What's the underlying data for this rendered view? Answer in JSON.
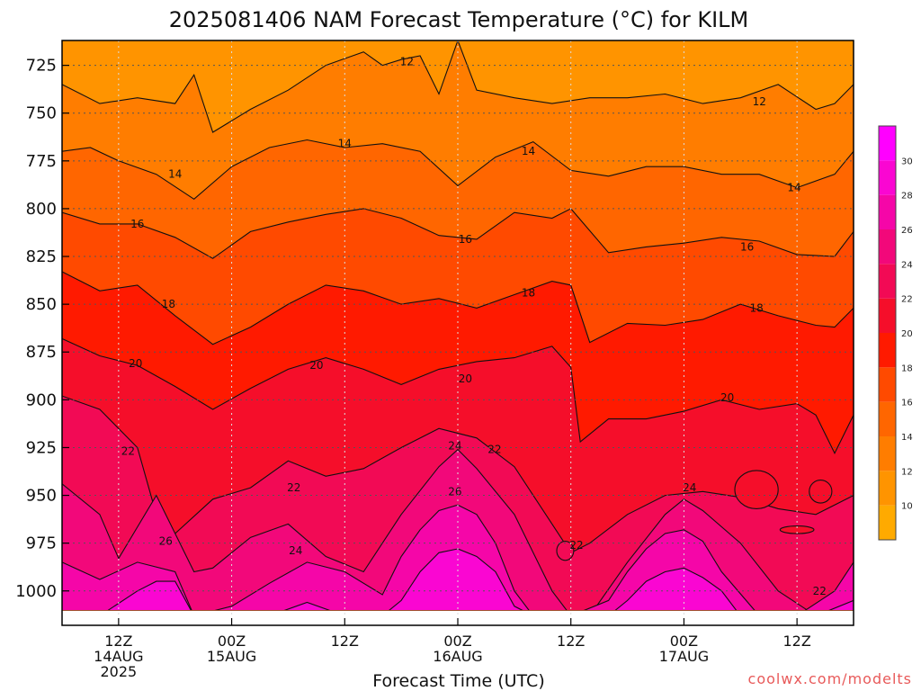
{
  "chart_data": {
    "type": "heatmap",
    "title": "2025081406 NAM Forecast Temperature (°C) for KILM",
    "xlabel": "Forecast Time (UTC)",
    "ylabel": "",
    "credit": "coolwx.com/modelts",
    "y_axis": {
      "ticks": [
        725,
        750,
        775,
        800,
        825,
        850,
        875,
        900,
        925,
        950,
        975,
        1000
      ],
      "range": [
        712,
        1018
      ],
      "inverted": true
    },
    "x_axis": {
      "range_hours": [
        6,
        90
      ],
      "ticks": [
        {
          "hour": 12,
          "lines": [
            "12Z",
            "14AUG",
            "2025"
          ]
        },
        {
          "hour": 24,
          "lines": [
            "00Z",
            "15AUG"
          ]
        },
        {
          "hour": 36,
          "lines": [
            "12Z"
          ]
        },
        {
          "hour": 48,
          "lines": [
            "00Z",
            "16AUG"
          ]
        },
        {
          "hour": 60,
          "lines": [
            "12Z"
          ]
        },
        {
          "hour": 72,
          "lines": [
            "00Z",
            "17AUG"
          ]
        },
        {
          "hour": 84,
          "lines": [
            "12Z"
          ]
        }
      ]
    },
    "grid": true,
    "colorbar": {
      "position": "right",
      "levels": [
        8,
        10,
        12,
        14,
        16,
        18,
        20,
        22,
        24,
        26,
        28,
        30,
        32
      ],
      "tick_labels": [
        "10",
        "12",
        "14",
        "16",
        "18",
        "20",
        "22",
        "24",
        "26",
        "28",
        "30"
      ],
      "colors": [
        "#ffaa00",
        "#ff9400",
        "#ff7d00",
        "#ff6600",
        "#ff4a00",
        "#ff1a00",
        "#f50e2a",
        "#f20a55",
        "#f2087a",
        "#f506a8",
        "#fa06d2",
        "#ff00ff"
      ]
    },
    "contour_levels": [
      12,
      14,
      16,
      18,
      20,
      22,
      24,
      26,
      28,
      30
    ],
    "isotherms": [
      {
        "level": 12,
        "hours": [
          6,
          10,
          14,
          18,
          20,
          22,
          26,
          30,
          34,
          38,
          40,
          42,
          44,
          46,
          48,
          50,
          54,
          58,
          62,
          66,
          70,
          74,
          78,
          82,
          86,
          88,
          90
        ],
        "pressure": [
          735,
          745,
          742,
          745,
          730,
          760,
          748,
          738,
          725,
          718,
          725,
          722,
          720,
          740,
          712,
          738,
          742,
          745,
          742,
          742,
          740,
          745,
          742,
          735,
          748,
          745,
          735
        ]
      },
      {
        "level": 14,
        "hours": [
          6,
          9,
          12,
          16,
          20,
          24,
          28,
          32,
          36,
          40,
          44,
          48,
          52,
          56,
          60,
          64,
          68,
          72,
          76,
          80,
          84,
          88,
          90
        ],
        "pressure": [
          770,
          768,
          775,
          782,
          795,
          778,
          768,
          764,
          768,
          766,
          770,
          788,
          773,
          765,
          780,
          783,
          778,
          778,
          782,
          782,
          789,
          782,
          770
        ]
      },
      {
        "level": 16,
        "hours": [
          6,
          10,
          14,
          18,
          22,
          26,
          30,
          34,
          38,
          42,
          46,
          50,
          54,
          58,
          60,
          64,
          68,
          72,
          76,
          80,
          84,
          88,
          90
        ],
        "pressure": [
          802,
          808,
          808,
          815,
          826,
          812,
          807,
          803,
          800,
          805,
          814,
          816,
          802,
          805,
          800,
          823,
          820,
          818,
          815,
          817,
          824,
          825,
          812
        ]
      },
      {
        "level": 18,
        "hours": [
          6,
          10,
          14,
          18,
          22,
          26,
          30,
          34,
          38,
          42,
          46,
          50,
          54,
          58,
          60,
          62,
          66,
          70,
          74,
          78,
          82,
          86,
          88,
          90
        ],
        "pressure": [
          833,
          843,
          840,
          856,
          871,
          862,
          850,
          840,
          843,
          850,
          847,
          852,
          845,
          838,
          840,
          870,
          860,
          861,
          858,
          850,
          856,
          861,
          862,
          852
        ]
      },
      {
        "level": 20,
        "hours": [
          6,
          10,
          14,
          18,
          22,
          26,
          30,
          34,
          38,
          42,
          46,
          50,
          54,
          58,
          60,
          61,
          64,
          68,
          72,
          76,
          80,
          84,
          86,
          88,
          90
        ],
        "pressure": [
          868,
          877,
          882,
          893,
          905,
          894,
          884,
          878,
          884,
          892,
          884,
          880,
          878,
          872,
          883,
          922,
          910,
          910,
          906,
          900,
          905,
          902,
          908,
          928,
          908
        ]
      },
      {
        "level": 22,
        "hours": [
          6,
          10,
          14,
          16,
          18,
          22,
          26,
          30,
          34,
          38,
          42,
          46,
          50,
          54,
          58,
          60,
          62,
          66,
          70,
          74,
          78,
          82,
          86,
          90
        ],
        "pressure": [
          898,
          905,
          925,
          960,
          970,
          952,
          946,
          932,
          940,
          936,
          925,
          915,
          920,
          935,
          965,
          980,
          975,
          960,
          950,
          948,
          951,
          957,
          960,
          950
        ]
      },
      {
        "level": 24,
        "hours": [
          6,
          10,
          12,
          16,
          20,
          22,
          26,
          30,
          34,
          38,
          42,
          46,
          48,
          50,
          54,
          58,
          60,
          62,
          66,
          70,
          72,
          74,
          78,
          82,
          86,
          90
        ],
        "pressure": [
          944,
          960,
          983,
          950,
          990,
          988,
          972,
          965,
          982,
          990,
          960,
          935,
          926,
          936,
          960,
          1000,
          1013,
          1013,
          985,
          960,
          952,
          958,
          975,
          1000,
          1013,
          1000
        ]
      },
      {
        "level": 26,
        "hours": [
          6,
          10,
          14,
          18,
          20,
          24,
          28,
          32,
          36,
          40,
          42,
          44,
          46,
          48,
          50,
          52,
          54,
          56,
          60,
          64,
          66,
          68,
          70,
          72,
          74,
          76,
          80,
          84,
          88,
          90
        ],
        "pressure": [
          985,
          994,
          985,
          990,
          1013,
          1008,
          996,
          985,
          990,
          1002,
          982,
          968,
          958,
          955,
          960,
          975,
          1000,
          1013,
          1013,
          1005,
          990,
          978,
          970,
          968,
          974,
          990,
          1013,
          1013,
          1000,
          985
        ]
      },
      {
        "level": 28,
        "hours": [
          6,
          10,
          14,
          16,
          18,
          20,
          24,
          28,
          32,
          36,
          40,
          42,
          44,
          46,
          48,
          50,
          52,
          54,
          56,
          60,
          64,
          66,
          68,
          70,
          72,
          74,
          76,
          78,
          82,
          86,
          90
        ],
        "pressure": [
          1013,
          1013,
          1000,
          995,
          995,
          1013,
          1013,
          1013,
          1006,
          1013,
          1013,
          1005,
          990,
          980,
          978,
          982,
          990,
          1008,
          1013,
          1013,
          1013,
          1005,
          995,
          990,
          988,
          993,
          1000,
          1013,
          1013,
          1013,
          1005
        ]
      }
    ],
    "contour_labels": [
      {
        "text": "12",
        "hour": 42.6,
        "pressure": 723
      },
      {
        "text": "12",
        "hour": 80.0,
        "pressure": 744
      },
      {
        "text": "14",
        "hour": 36.0,
        "pressure": 766
      },
      {
        "text": "14",
        "hour": 18.0,
        "pressure": 782
      },
      {
        "text": "14",
        "hour": 55.5,
        "pressure": 770
      },
      {
        "text": "14",
        "hour": 83.7,
        "pressure": 789
      },
      {
        "text": "16",
        "hour": 14.0,
        "pressure": 808
      },
      {
        "text": "16",
        "hour": 48.8,
        "pressure": 816
      },
      {
        "text": "16",
        "hour": 78.7,
        "pressure": 820
      },
      {
        "text": "18",
        "hour": 17.3,
        "pressure": 850
      },
      {
        "text": "18",
        "hour": 55.5,
        "pressure": 844
      },
      {
        "text": "18",
        "hour": 79.7,
        "pressure": 852
      },
      {
        "text": "20",
        "hour": 13.8,
        "pressure": 881
      },
      {
        "text": "20",
        "hour": 33.0,
        "pressure": 882
      },
      {
        "text": "20",
        "hour": 48.8,
        "pressure": 889
      },
      {
        "text": "20",
        "hour": 76.6,
        "pressure": 899
      },
      {
        "text": "22",
        "hour": 13.0,
        "pressure": 927
      },
      {
        "text": "22",
        "hour": 30.6,
        "pressure": 946
      },
      {
        "text": "22",
        "hour": 51.9,
        "pressure": 926
      },
      {
        "text": "22",
        "hour": 60.6,
        "pressure": 976
      },
      {
        "text": "22",
        "hour": 86.4,
        "pressure": 1000
      },
      {
        "text": "24",
        "hour": 47.7,
        "pressure": 924
      },
      {
        "text": "24",
        "hour": 30.8,
        "pressure": 979
      },
      {
        "text": "24",
        "hour": 72.6,
        "pressure": 946
      },
      {
        "text": "26",
        "hour": 47.7,
        "pressure": 948
      },
      {
        "text": "26",
        "hour": 17.0,
        "pressure": 974
      }
    ],
    "warm_pockets": [
      {
        "level": 20,
        "center_hour": 79.7,
        "center_pressure": 947,
        "half_width_hours": 2.3,
        "half_height_pressure": 10
      },
      {
        "level": 20,
        "center_hour": 86.5,
        "center_pressure": 948,
        "half_width_hours": 1.2,
        "half_height_pressure": 6
      },
      {
        "level": 20,
        "center_hour": 84.0,
        "center_pressure": 968,
        "half_width_hours": 1.8,
        "half_height_pressure": 2
      },
      {
        "level": 22,
        "center_hour": 59.4,
        "center_pressure": 979,
        "half_width_hours": 0.9,
        "half_height_pressure": 5
      }
    ],
    "ground": {
      "pressure_top": 1010,
      "color": "#a0522d"
    }
  }
}
